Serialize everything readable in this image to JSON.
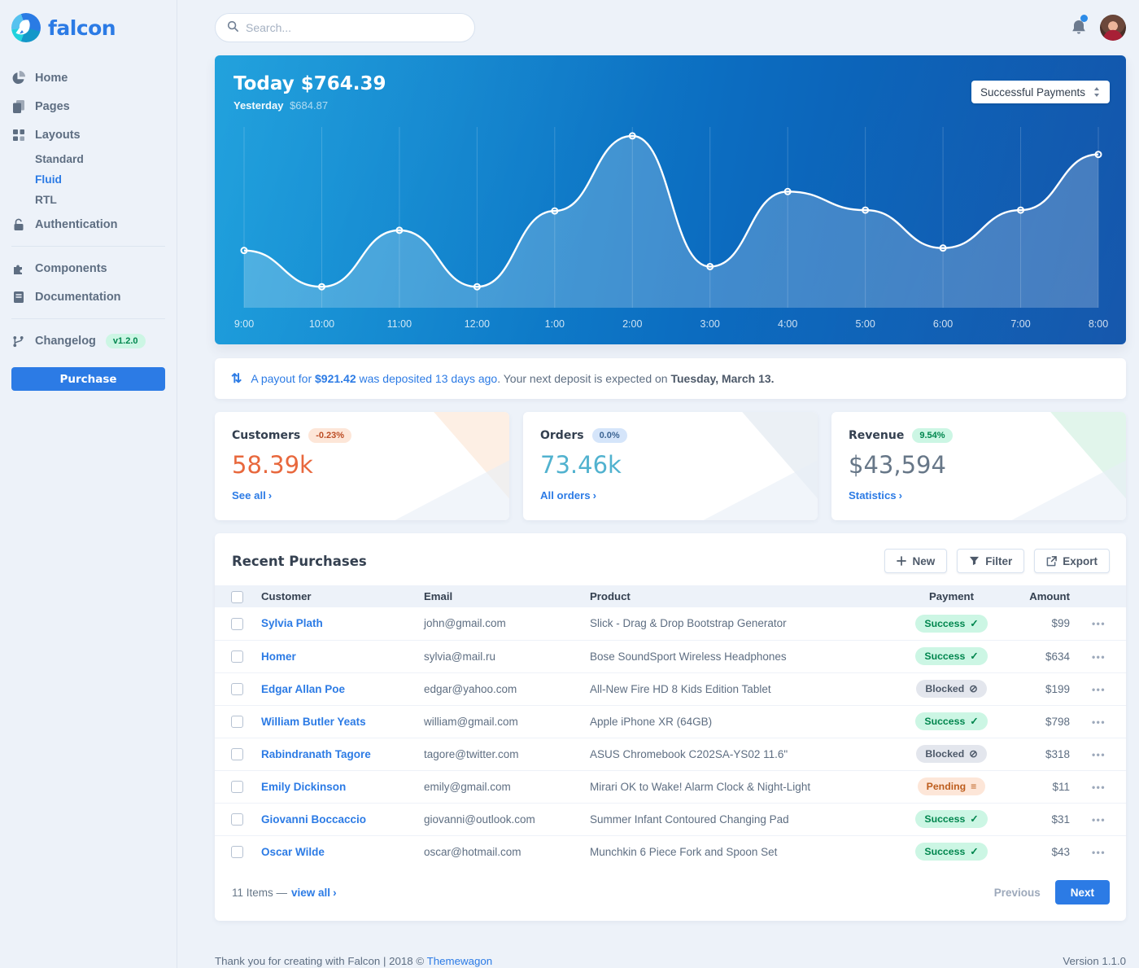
{
  "brand": {
    "name": "falcon"
  },
  "sidebar": {
    "items": [
      {
        "label": "Home"
      },
      {
        "label": "Pages"
      },
      {
        "label": "Layouts"
      },
      {
        "label": "Authentication"
      },
      {
        "label": "Components"
      },
      {
        "label": "Documentation"
      },
      {
        "label": "Changelog",
        "badge": "v1.2.0"
      }
    ],
    "layouts_children": [
      {
        "label": "Standard"
      },
      {
        "label": "Fluid"
      },
      {
        "label": "RTL"
      }
    ],
    "purchase_label": "Purchase"
  },
  "topbar": {
    "search_placeholder": "Search..."
  },
  "payments_card": {
    "today_label": "Today",
    "today_value": "$764.39",
    "yesterday_label": "Yesterday",
    "yesterday_value": "$684.87",
    "dropdown_value": "Successful Payments"
  },
  "chart_data": {
    "type": "area",
    "series_label": "Successful Payments",
    "x": [
      "9:00",
      "10:00",
      "11:00",
      "12:00",
      "1:00",
      "2:00",
      "3:00",
      "4:00",
      "5:00",
      "6:00",
      "7:00",
      "8:00"
    ],
    "values": [
      142,
      52,
      192,
      52,
      240,
      426,
      102,
      288,
      242,
      148,
      242,
      380
    ],
    "ylim": [
      0,
      440
    ],
    "grid": "vertical-only",
    "line_color": "#ffffff",
    "area_color": "rgba(255,255,255,0.22)",
    "label_color": "rgba(255,255,255,0.8)"
  },
  "payout_banner": {
    "link_prefix": "A payout for",
    "link_amount": "$921.42",
    "link_suffix": "was deposited 13 days ago",
    "rest_text": ". Your next deposit is expected on",
    "rest_bold": "Tuesday, March 13."
  },
  "stats": [
    {
      "title": "Customers",
      "badge": "-0.23%",
      "value": "58.39k",
      "link": "See all",
      "accent": "#e8683d",
      "badge_bg": "#fde6d8",
      "badge_color": "#bc4c24",
      "corner_tint": "#fcebdd"
    },
    {
      "title": "Orders",
      "badge": "0.0%",
      "value": "73.46k",
      "link": "All orders",
      "accent": "#51b2cf",
      "badge_bg": "#d5e5fa",
      "badge_color": "#3c6493",
      "corner_tint": "#e6ecf3"
    },
    {
      "title": "Revenue",
      "badge": "9.54%",
      "value": "$43,594",
      "link": "Statistics",
      "accent": "#677788",
      "badge_bg": "#ccf6e4",
      "badge_color": "#00864e",
      "corner_tint": "#d9f3e6"
    }
  ],
  "purchases": {
    "title": "Recent Purchases",
    "buttons": [
      {
        "label": "New"
      },
      {
        "label": "Filter"
      },
      {
        "label": "Export"
      }
    ],
    "columns": [
      "Customer",
      "Email",
      "Product",
      "Payment",
      "Amount"
    ],
    "badge_styles": {
      "Success": {
        "bg": "#ccf6e4",
        "color": "#00864e",
        "icon": "✓"
      },
      "Blocked": {
        "bg": "#e3e6ed",
        "color": "#4d5969",
        "icon": "⊘"
      },
      "Pending": {
        "bg": "#fde6d8",
        "color": "#bd5d1d",
        "icon": "≡"
      }
    },
    "rows": [
      {
        "customer": "Sylvia Plath",
        "email": "john@gmail.com",
        "product": "Slick - Drag & Drop Bootstrap Generator",
        "payment": "Success",
        "amount": "$99"
      },
      {
        "customer": "Homer",
        "email": "sylvia@mail.ru",
        "product": "Bose SoundSport Wireless Headphones",
        "payment": "Success",
        "amount": "$634"
      },
      {
        "customer": "Edgar Allan Poe",
        "email": "edgar@yahoo.com",
        "product": "All-New Fire HD 8 Kids Edition Tablet",
        "payment": "Blocked",
        "amount": "$199"
      },
      {
        "customer": "William Butler Yeats",
        "email": "william@gmail.com",
        "product": "Apple iPhone XR (64GB)",
        "payment": "Success",
        "amount": "$798"
      },
      {
        "customer": "Rabindranath Tagore",
        "email": "tagore@twitter.com",
        "product": "ASUS Chromebook C202SA-YS02 11.6\"",
        "payment": "Blocked",
        "amount": "$318"
      },
      {
        "customer": "Emily Dickinson",
        "email": "emily@gmail.com",
        "product": "Mirari OK to Wake! Alarm Clock & Night-Light",
        "payment": "Pending",
        "amount": "$11"
      },
      {
        "customer": "Giovanni Boccaccio",
        "email": "giovanni@outlook.com",
        "product": "Summer Infant Contoured Changing Pad",
        "payment": "Success",
        "amount": "$31"
      },
      {
        "customer": "Oscar Wilde",
        "email": "oscar@hotmail.com",
        "product": "Munchkin 6 Piece Fork and Spoon Set",
        "payment": "Success",
        "amount": "$43"
      }
    ],
    "footer": {
      "items_text": "11 Items —",
      "view_all": "view all",
      "previous": "Previous",
      "next": "Next"
    }
  },
  "page_footer": {
    "thanks": "Thank you for creating with Falcon | 2018 ©",
    "link": "Themewagon",
    "version": "Version 1.1.0"
  }
}
